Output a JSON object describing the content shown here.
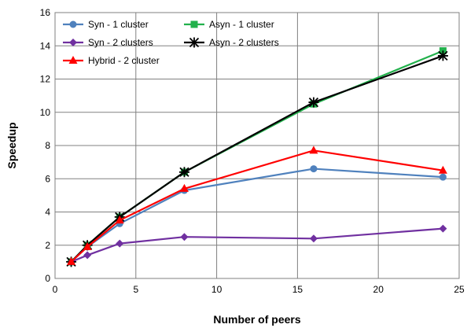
{
  "chart_data": {
    "type": "line",
    "xlabel": "Number of peers",
    "ylabel": "Speedup",
    "xlim": [
      0,
      25
    ],
    "ylim": [
      0,
      16
    ],
    "xticks": [
      0,
      5,
      10,
      15,
      20,
      25
    ],
    "yticks": [
      0,
      2,
      4,
      6,
      8,
      10,
      12,
      14,
      16
    ],
    "grid": true,
    "legend_position": "top-left",
    "series": [
      {
        "name": "Syn - 1 cluster",
        "color": "#4f81bd",
        "marker": "circle",
        "x": [
          1,
          2,
          4,
          8,
          16,
          24
        ],
        "y": [
          1.0,
          1.9,
          3.3,
          5.3,
          6.6,
          6.1
        ]
      },
      {
        "name": "Asyn - 1 cluster",
        "color": "#22b14c",
        "marker": "square",
        "x": [
          1,
          2,
          4,
          8,
          16,
          24
        ],
        "y": [
          1.0,
          2.0,
          3.7,
          6.4,
          10.5,
          13.7
        ]
      },
      {
        "name": "Syn - 2 clusters",
        "color": "#7030a0",
        "marker": "diamond",
        "x": [
          1,
          2,
          4,
          8,
          16,
          24
        ],
        "y": [
          1.0,
          1.4,
          2.1,
          2.5,
          2.4,
          3.0
        ]
      },
      {
        "name": "Asyn - 2 clusters",
        "color": "#000000",
        "marker": "star",
        "x": [
          1,
          2,
          4,
          8,
          16,
          24
        ],
        "y": [
          1.0,
          2.0,
          3.7,
          6.4,
          10.6,
          13.4
        ]
      },
      {
        "name": "Hybrid - 2 cluster",
        "color": "#ff0000",
        "marker": "triangle",
        "x": [
          1,
          2,
          4,
          8,
          16,
          24
        ],
        "y": [
          1.0,
          1.9,
          3.5,
          5.4,
          7.7,
          6.5
        ]
      }
    ]
  }
}
